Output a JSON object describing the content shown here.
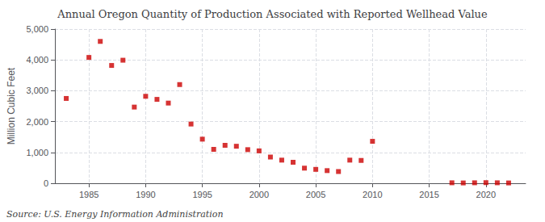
{
  "chart_data": {
    "type": "scatter",
    "title": "Annual Oregon Quantity of Production Associated with Reported Wellhead Value",
    "ylabel": "Million Cubic Feet",
    "source": "Source: U.S. Energy Information Administration",
    "color": "#cc0000",
    "marker": "square",
    "grid": true,
    "x": [
      1983,
      1985,
      1986,
      1987,
      1988,
      1989,
      1990,
      1991,
      1992,
      1993,
      1994,
      1995,
      1996,
      1997,
      1998,
      1999,
      2000,
      2001,
      2002,
      2003,
      2004,
      2005,
      2006,
      2007,
      2008,
      2009,
      2010,
      2017,
      2018,
      2019,
      2020,
      2021,
      2022
    ],
    "values": [
      2750,
      4080,
      4600,
      3820,
      3990,
      2470,
      2820,
      2720,
      2600,
      3200,
      1920,
      1430,
      1100,
      1230,
      1200,
      1090,
      1050,
      850,
      750,
      680,
      490,
      450,
      410,
      380,
      750,
      740,
      1360,
      15,
      10,
      15,
      20,
      15,
      10
    ],
    "xlim": [
      1982,
      2023.5
    ],
    "xticks": [
      1985,
      1990,
      1995,
      2000,
      2005,
      2010,
      2015,
      2020
    ],
    "ylim": [
      0,
      5000
    ],
    "yticks": [
      0,
      {
        "value": 1000,
        "label": "1,000"
      },
      {
        "value": 2000,
        "label": "2,000"
      },
      {
        "value": 3000,
        "label": "3,000"
      },
      {
        "value": 4000,
        "label": "4,000"
      },
      {
        "value": 5000,
        "label": "5,000"
      }
    ]
  }
}
